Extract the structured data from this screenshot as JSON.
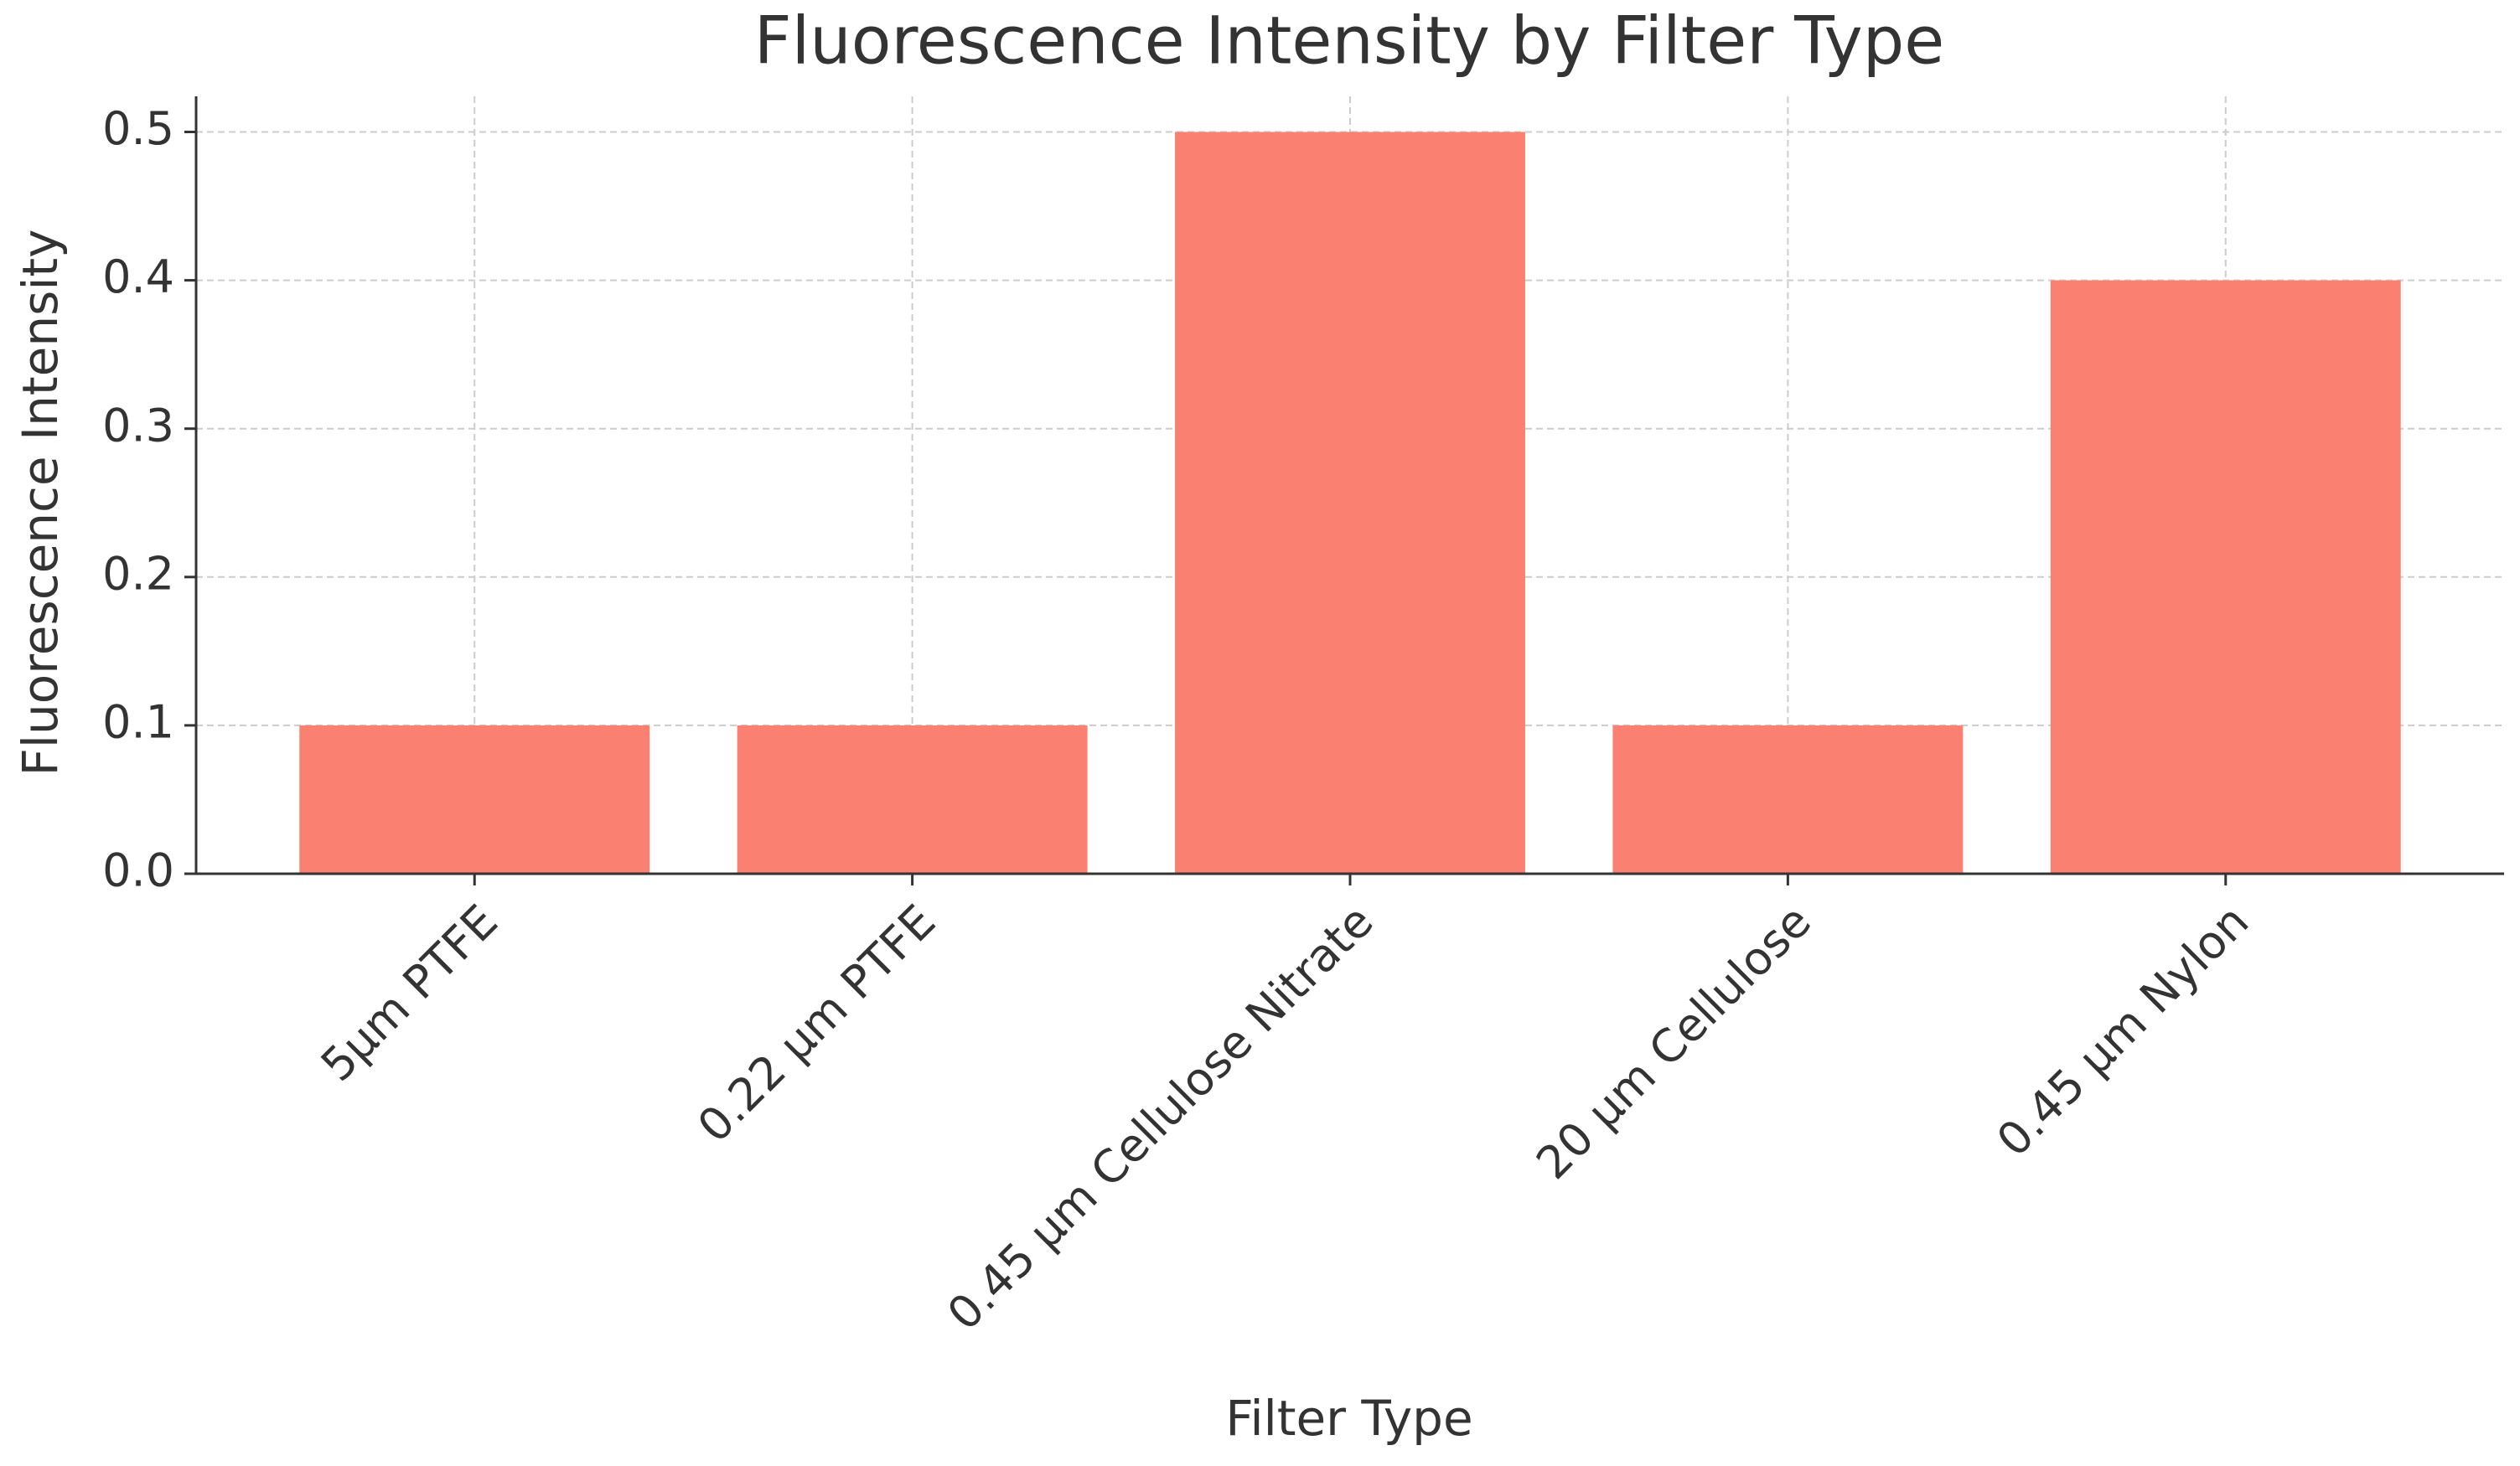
{
  "chart_data": {
    "type": "bar",
    "title": "Fluorescence Intensity by Filter Type",
    "x_label": "Filter Type",
    "y_label": "Fluorescence Intensity",
    "categories": [
      "5µm PTFE",
      "0.22 µm PTFE",
      "0.45 µm Cellulose Nitrate",
      "20 µm Cellulose",
      "0.45 µm Nylon"
    ],
    "values": [
      0.1,
      0.1,
      0.5,
      0.1,
      0.4
    ],
    "color": "#fa8072",
    "ylim": [
      0,
      0.524
    ],
    "yticks": [
      {
        "value": 0,
        "label": "0.0"
      },
      0.1,
      0.2,
      0.3,
      0.4,
      0.5
    ],
    "grid": true
  }
}
